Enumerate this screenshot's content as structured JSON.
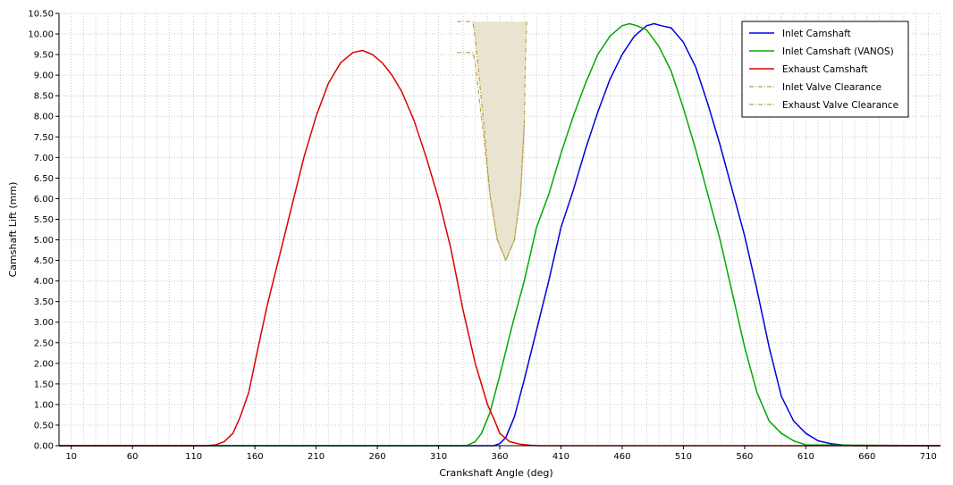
{
  "chart_data": {
    "type": "line",
    "xlabel": "Crankshaft Angle (deg)",
    "ylabel": "Camshaft Lift (mm)",
    "xlim": [
      0,
      720
    ],
    "ylim": [
      0,
      10.5
    ],
    "xticks": [
      10,
      60,
      110,
      160,
      210,
      260,
      310,
      360,
      410,
      460,
      510,
      560,
      610,
      660,
      710
    ],
    "yticks": [
      0,
      0.5,
      1,
      1.5,
      2,
      2.5,
      3,
      3.5,
      4,
      4.5,
      5,
      5.5,
      6,
      6.5,
      7,
      7.5,
      8,
      8.5,
      9,
      9.5,
      10,
      10.5
    ],
    "grid": true,
    "legend_position": "top-right",
    "series": [
      {
        "name": "Inlet Camshaft",
        "color": "#0000dd",
        "style": "solid",
        "x": [
          0,
          355,
          360,
          365,
          372,
          380,
          390,
          400,
          410,
          420,
          430,
          440,
          450,
          460,
          470,
          480,
          486,
          492,
          500,
          510,
          520,
          530,
          540,
          550,
          560,
          570,
          580,
          590,
          600,
          610,
          620,
          630,
          640,
          650,
          720
        ],
        "y": [
          0,
          0,
          0.05,
          0.2,
          0.7,
          1.6,
          2.8,
          4.0,
          5.3,
          6.2,
          7.2,
          8.1,
          8.9,
          9.5,
          9.95,
          10.2,
          10.25,
          10.2,
          10.15,
          9.8,
          9.2,
          8.3,
          7.3,
          6.2,
          5.1,
          3.8,
          2.4,
          1.2,
          0.6,
          0.3,
          0.12,
          0.05,
          0.02,
          0,
          0
        ]
      },
      {
        "name": "Inlet Camshaft (VANOS)",
        "color": "#00aa00",
        "style": "solid",
        "x": [
          0,
          333,
          340,
          345,
          352,
          360,
          370,
          380,
          390,
          400,
          410,
          420,
          430,
          440,
          450,
          460,
          466,
          472,
          480,
          490,
          500,
          510,
          520,
          530,
          540,
          550,
          560,
          570,
          580,
          590,
          600,
          610,
          720
        ],
        "y": [
          0,
          0,
          0.1,
          0.3,
          0.8,
          1.7,
          2.9,
          4.0,
          5.3,
          6.1,
          7.1,
          8.0,
          8.8,
          9.5,
          9.95,
          10.2,
          10.25,
          10.2,
          10.1,
          9.7,
          9.1,
          8.2,
          7.2,
          6.1,
          5.0,
          3.7,
          2.4,
          1.3,
          0.6,
          0.3,
          0.12,
          0.02,
          0
        ]
      },
      {
        "name": "Exhaust Camshaft",
        "color": "#dd0000",
        "style": "solid",
        "x": [
          0,
          120,
          128,
          135,
          142,
          148,
          155,
          162,
          170,
          180,
          190,
          200,
          210,
          220,
          230,
          240,
          248,
          256,
          264,
          272,
          280,
          290,
          300,
          310,
          320,
          330,
          340,
          350,
          356,
          360,
          368,
          376,
          385,
          392,
          720
        ],
        "y": [
          0,
          0,
          0.02,
          0.1,
          0.3,
          0.7,
          1.3,
          2.3,
          3.4,
          4.6,
          5.8,
          7.0,
          8.0,
          8.8,
          9.3,
          9.55,
          9.6,
          9.5,
          9.3,
          9.0,
          8.6,
          7.9,
          7.0,
          6.0,
          4.8,
          3.3,
          2.0,
          1.0,
          0.6,
          0.3,
          0.1,
          0.04,
          0.01,
          0,
          0
        ]
      },
      {
        "name": "Inlet Valve Clearance",
        "color": "#b8a24a",
        "style": "dashdot",
        "x": [
          325,
          338,
          340,
          343,
          347,
          352,
          358,
          365,
          372,
          377,
          380
        ],
        "y": [
          10.3,
          10.3,
          9.9,
          9.0,
          7.8,
          6.1,
          5.0,
          4.5,
          5.0,
          6.1,
          7.8
        ]
      },
      {
        "name": "Exhaust Valve Clearance",
        "color": "#b8a24a",
        "style": "dashdot",
        "x": [
          325,
          338,
          340,
          343,
          347,
          352,
          358,
          365,
          372,
          377,
          380,
          381,
          382
        ],
        "y": [
          9.55,
          9.55,
          9.3,
          8.5,
          7.5,
          6.1,
          5.0,
          4.5,
          5.0,
          6.1,
          7.8,
          9.5,
          10.3
        ]
      }
    ],
    "shaded_region": {
      "color": "#e9e4cf",
      "top": 10.3,
      "x": [
        338,
        340,
        343,
        347,
        352,
        358,
        365,
        372,
        377,
        380,
        381,
        382
      ],
      "y": [
        10.3,
        9.9,
        9.0,
        7.8,
        6.1,
        5.0,
        4.5,
        5.0,
        6.1,
        7.8,
        9.5,
        10.3
      ]
    }
  }
}
